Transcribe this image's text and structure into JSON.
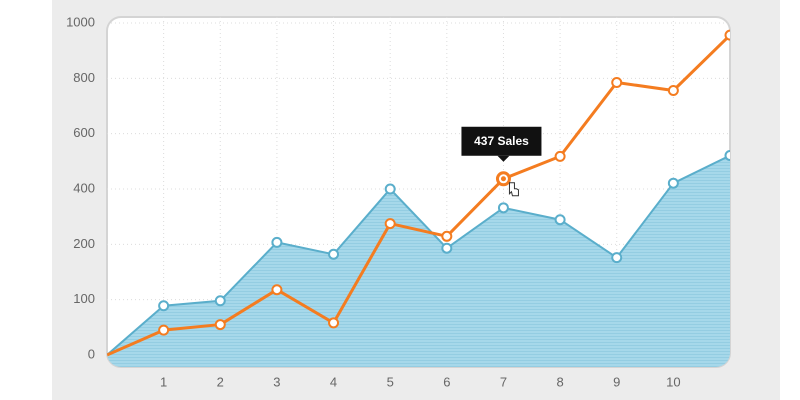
{
  "chart_data": {
    "type": "line-area",
    "x": [
      0,
      1,
      2,
      3,
      4,
      5,
      6,
      7,
      8,
      9,
      10,
      11
    ],
    "series": [
      {
        "kind": "area",
        "color": "#5aaecb",
        "values": [
          0,
          89,
          98,
          207,
          182,
          400,
          193,
          332,
          289,
          176,
          421,
          521
        ]
      },
      {
        "kind": "line",
        "color": "#f47c20",
        "values": [
          0,
          45,
          55,
          118,
          58,
          275,
          229,
          437,
          518,
          785,
          756,
          956
        ]
      }
    ],
    "xlim": [
      0,
      11
    ],
    "xticks": [
      1,
      2,
      3,
      4,
      5,
      6,
      7,
      8,
      9,
      10
    ],
    "ylim": [
      0,
      1000
    ],
    "yticks": [
      0,
      100,
      200,
      400,
      600,
      800,
      1000
    ],
    "grid": true,
    "tooltip": {
      "series": 1,
      "index": 7,
      "label": "437 Sales"
    }
  }
}
